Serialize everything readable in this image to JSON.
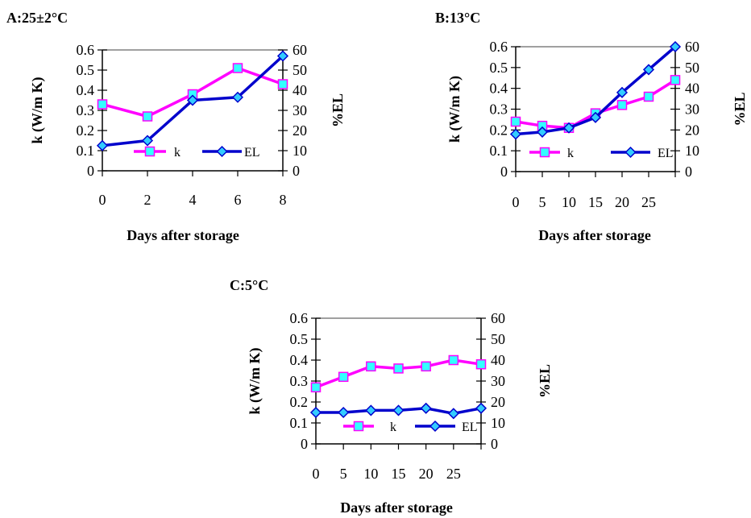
{
  "colors": {
    "k": "#ff00ff",
    "k_marker": "#33ffff",
    "el": "#0000cc",
    "el_marker": "#33ccff",
    "axis": "#000000",
    "top_border": "#808080"
  },
  "chart_data": [
    {
      "type": "line",
      "title": "A:25±2°C",
      "xlabel": "Days after storage",
      "ylabel_left": "k (W/m K)",
      "ylabel_right": "%EL",
      "x": [
        0,
        2,
        4,
        6,
        8
      ],
      "x_tick_labels": [
        "0",
        "2",
        "4",
        "6",
        "8"
      ],
      "y_left_ticks": [
        "0",
        "0.1",
        "0.2",
        "0.3",
        "0.4",
        "0.5",
        "0.6"
      ],
      "y_right_ticks": [
        "0",
        "10",
        "20",
        "30",
        "40",
        "50",
        "60"
      ],
      "ylim_left": [
        0,
        0.6
      ],
      "ylim_right": [
        0,
        60
      ],
      "legend_position": "lower middle",
      "series": [
        {
          "name": "k",
          "axis": "left",
          "marker": "square",
          "values": [
            0.33,
            0.27,
            0.38,
            0.51,
            0.43
          ]
        },
        {
          "name": "EL",
          "axis": "right",
          "marker": "diamond",
          "values": [
            12.5,
            15,
            35,
            36.5,
            57
          ]
        }
      ]
    },
    {
      "type": "line",
      "title": "B:13°C",
      "xlabel": "Days after storage",
      "ylabel_left": "k (W/m K)",
      "ylabel_right": "%EL",
      "x": [
        0,
        5,
        10,
        15,
        20,
        25,
        30
      ],
      "x_tick_labels": [
        "0",
        "5",
        "10",
        "15",
        "20",
        "25"
      ],
      "y_left_ticks": [
        "0",
        "0.1",
        "0.2",
        "0.3",
        "0.4",
        "0.5",
        "0.6"
      ],
      "y_right_ticks": [
        "0",
        "10",
        "20",
        "30",
        "40",
        "50",
        "60"
      ],
      "ylim_left": [
        0,
        0.6
      ],
      "ylim_right": [
        0,
        60
      ],
      "legend_position": "lower middle",
      "series": [
        {
          "name": "k",
          "axis": "left",
          "marker": "square",
          "values": [
            0.24,
            0.22,
            0.21,
            0.28,
            0.32,
            0.36,
            0.44
          ]
        },
        {
          "name": "EL",
          "axis": "right",
          "marker": "diamond",
          "values": [
            18,
            19,
            21,
            26,
            38,
            49,
            60
          ]
        }
      ]
    },
    {
      "type": "line",
      "title": "C:5°C",
      "xlabel": "Days after storage",
      "ylabel_left": "k (W/m K)",
      "ylabel_right": "%EL",
      "x": [
        0,
        5,
        10,
        15,
        20,
        25,
        30
      ],
      "x_tick_labels": [
        "0",
        "5",
        "10",
        "15",
        "20",
        "25"
      ],
      "y_left_ticks": [
        "0",
        "0.1",
        "0.2",
        "0.3",
        "0.4",
        "0.5",
        "0.6"
      ],
      "y_right_ticks": [
        "0",
        "10",
        "20",
        "30",
        "40",
        "50",
        "60"
      ],
      "ylim_left": [
        0,
        0.6
      ],
      "ylim_right": [
        0,
        60
      ],
      "legend_position": "lower middle",
      "series": [
        {
          "name": "k",
          "axis": "left",
          "marker": "square",
          "values": [
            0.27,
            0.32,
            0.37,
            0.36,
            0.37,
            0.4,
            0.38
          ]
        },
        {
          "name": "EL",
          "axis": "right",
          "marker": "diamond",
          "values": [
            15,
            15,
            16,
            16,
            17,
            14.5,
            17
          ]
        }
      ]
    }
  ]
}
